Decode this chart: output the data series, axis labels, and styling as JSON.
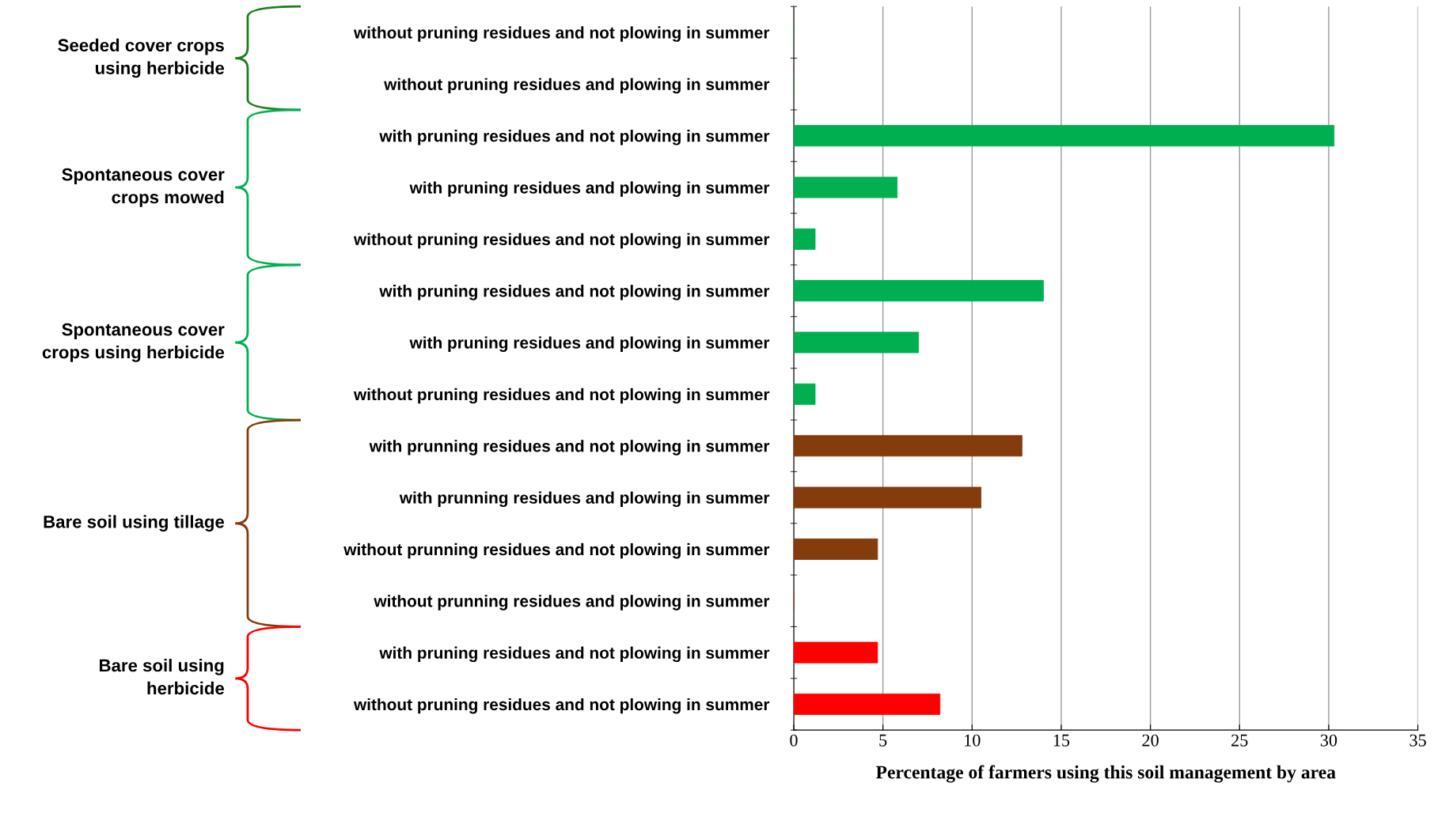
{
  "chart_data": {
    "type": "bar",
    "orientation": "horizontal",
    "categories": [
      "without pruning residues and not plowing in summer",
      "without pruning residues and plowing in summer",
      "with pruning residues and not plowing in summer",
      "with pruning residues and plowing in summer",
      "without pruning residues and not plowing in summer",
      "with pruning residues and not plowing in summer",
      "with pruning residues and plowing in summer",
      "without pruning residues and not plowing in summer",
      "with prunning residues and not plowing in summer",
      "with prunning residues and plowing in summer",
      "without prunning residues and not plowing in summer",
      "without prunning residues and plowing in summer",
      "with pruning residues and not plowing in summer",
      "without pruning residues and not plowing in summer"
    ],
    "values": [
      0,
      0,
      30.3,
      5.8,
      1.2,
      14,
      7,
      1.2,
      12.8,
      10.5,
      4.7,
      0,
      4.7,
      8.2
    ],
    "colors": [
      "#1e7d1e",
      "#1e7d1e",
      "#00b050",
      "#00b050",
      "#00b050",
      "#00b050",
      "#00b050",
      "#00b050",
      "#843c0c",
      "#843c0c",
      "#843c0c",
      "#843c0c",
      "#ff0000",
      "#ff0000"
    ],
    "xlim": [
      0,
      35
    ],
    "xticks": [
      0,
      5,
      10,
      15,
      20,
      25,
      30,
      35
    ],
    "grid": "x",
    "xlabel": "Percentage of farmers using this soil management by area",
    "annotations": [
      "Seeded cover crops\nusing herbicide",
      "Spontaneous cover\ncrops mowed",
      "Spontaneous cover\ncrops using herbicide",
      "Bare soil using tillage",
      "Bare soil using\nherbicide"
    ]
  }
}
